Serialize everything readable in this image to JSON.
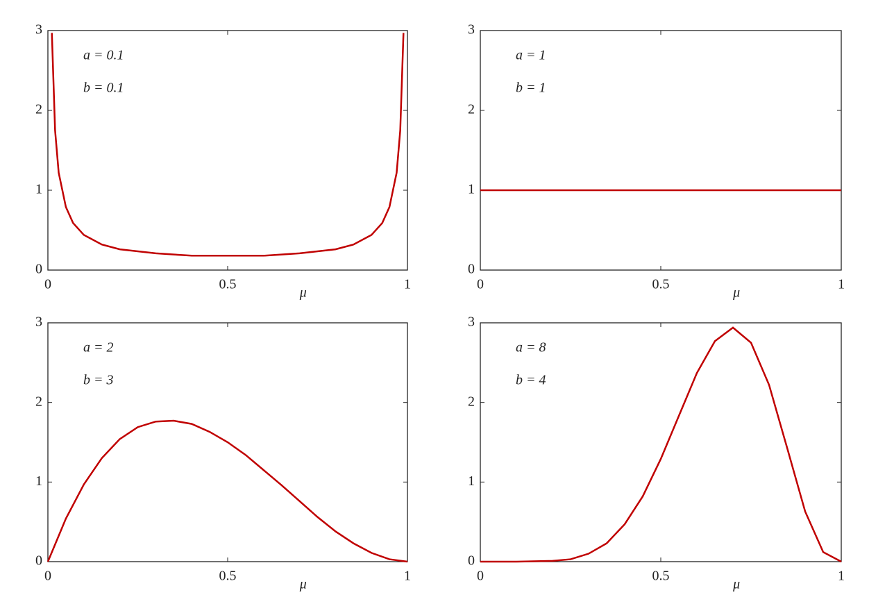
{
  "chart_data": [
    {
      "type": "line",
      "annotations": [
        "a = 0.1",
        "b = 0.1"
      ],
      "xlabel": "μ",
      "color": "#c00000",
      "x": [
        0.011,
        0.02,
        0.03,
        0.05,
        0.07,
        0.1,
        0.15,
        0.2,
        0.3,
        0.4,
        0.5,
        0.6,
        0.7,
        0.8,
        0.85,
        0.9,
        0.93,
        0.95,
        0.97,
        0.98,
        0.989
      ],
      "values": [
        2.97,
        1.75,
        1.22,
        0.79,
        0.59,
        0.44,
        0.32,
        0.26,
        0.21,
        0.18,
        0.18,
        0.18,
        0.21,
        0.26,
        0.32,
        0.44,
        0.59,
        0.79,
        1.22,
        1.75,
        2.97
      ],
      "xlim": [
        0,
        1
      ],
      "ylim": [
        0,
        3
      ],
      "xticks": [
        0,
        0.5,
        1
      ],
      "yticks": [
        0,
        1,
        2,
        3
      ]
    },
    {
      "type": "line",
      "annotations": [
        "a = 1",
        "b = 1"
      ],
      "xlabel": "μ",
      "color": "#c00000",
      "x": [
        0,
        1
      ],
      "values": [
        1,
        1
      ],
      "xlim": [
        0,
        1
      ],
      "ylim": [
        0,
        3
      ],
      "xticks": [
        0,
        0.5,
        1
      ],
      "yticks": [
        0,
        1,
        2,
        3
      ]
    },
    {
      "type": "line",
      "annotations": [
        "a = 2",
        "b = 3"
      ],
      "xlabel": "μ",
      "color": "#c00000",
      "x": [
        0,
        0.05,
        0.1,
        0.15,
        0.2,
        0.25,
        0.3,
        0.35,
        0.4,
        0.45,
        0.5,
        0.55,
        0.6,
        0.65,
        0.7,
        0.75,
        0.8,
        0.85,
        0.9,
        0.95,
        1
      ],
      "values": [
        0,
        0.54,
        0.97,
        1.3,
        1.54,
        1.69,
        1.76,
        1.77,
        1.73,
        1.63,
        1.5,
        1.34,
        1.15,
        0.96,
        0.76,
        0.56,
        0.38,
        0.23,
        0.11,
        0.03,
        0
      ],
      "xlim": [
        0,
        1
      ],
      "ylim": [
        0,
        3
      ],
      "xticks": [
        0,
        0.5,
        1
      ],
      "yticks": [
        0,
        1,
        2,
        3
      ]
    },
    {
      "type": "line",
      "annotations": [
        "a = 8",
        "b = 4"
      ],
      "xlabel": "μ",
      "color": "#c00000",
      "x": [
        0,
        0.1,
        0.2,
        0.25,
        0.3,
        0.35,
        0.4,
        0.45,
        0.5,
        0.55,
        0.6,
        0.65,
        0.7,
        0.75,
        0.8,
        0.85,
        0.9,
        0.95,
        1
      ],
      "values": [
        0,
        0,
        0.01,
        0.03,
        0.1,
        0.23,
        0.47,
        0.82,
        1.29,
        1.83,
        2.37,
        2.77,
        2.94,
        2.75,
        2.22,
        1.43,
        0.63,
        0.12,
        0
      ],
      "xlim": [
        0,
        1
      ],
      "ylim": [
        0,
        3
      ],
      "xticks": [
        0,
        0.5,
        1
      ],
      "yticks": [
        0,
        1,
        2,
        3
      ]
    }
  ]
}
